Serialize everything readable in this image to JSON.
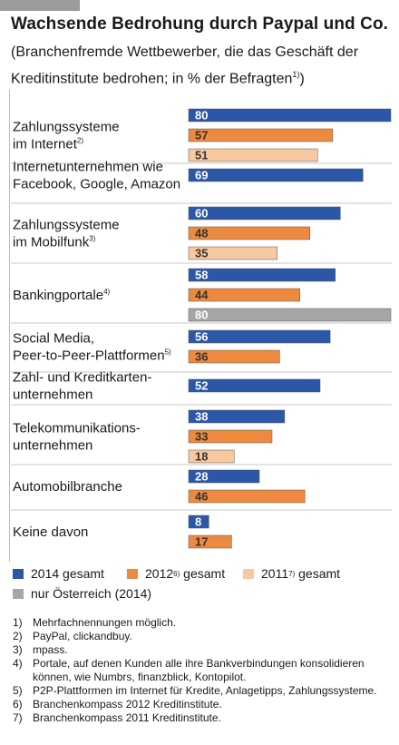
{
  "title": "Wachsende Bedrohung durch Paypal und Co.",
  "subtitle": "(Branchenfremde Wettbewerber, die das Geschäft der Kreditinstitute bedrohen; in % der Befragten",
  "subtitle_sup": "1)",
  "subtitle_close": ")",
  "colors": {
    "2014 gesamt": "#2b57a6",
    "2012 gesamt": "#ee8a40",
    "2011 gesamt": "#f8c8a0",
    "nur Österreich (2014)": "#a6a6a6"
  },
  "chart_data": {
    "type": "bar",
    "orientation": "horizontal",
    "xlim": [
      0,
      80
    ],
    "groups": [
      {
        "label": [
          "Zahlungssysteme",
          "im Internet"
        ],
        "sup": "2)",
        "bars": [
          {
            "series": "2014 gesamt",
            "value": 80
          },
          {
            "series": "2012 gesamt",
            "value": 57
          },
          {
            "series": "2011 gesamt",
            "value": 51
          }
        ]
      },
      {
        "label": [
          "Internetunternehmen wie",
          "Facebook, Google, Amazon"
        ],
        "sup": "",
        "bars": [
          {
            "series": "2014 gesamt",
            "value": 69
          }
        ]
      },
      {
        "label": [
          "Zahlungssysteme",
          "im Mobilfunk"
        ],
        "sup": "3)",
        "bars": [
          {
            "series": "2014 gesamt",
            "value": 60
          },
          {
            "series": "2012 gesamt",
            "value": 48
          },
          {
            "series": "2011 gesamt",
            "value": 35
          }
        ]
      },
      {
        "label": [
          "Bankingportale"
        ],
        "sup": "4)",
        "bars": [
          {
            "series": "2014 gesamt",
            "value": 58
          },
          {
            "series": "2012 gesamt",
            "value": 44
          },
          {
            "series": "nur Österreich (2014)",
            "value": 80
          }
        ]
      },
      {
        "label": [
          "Social Media,",
          "Peer-to-Peer-Plattformen"
        ],
        "sup": "5)",
        "bars": [
          {
            "series": "2014 gesamt",
            "value": 56
          },
          {
            "series": "2012 gesamt",
            "value": 36
          }
        ]
      },
      {
        "label": [
          "Zahl- und Kreditkarten-",
          "unternehmen"
        ],
        "sup": "",
        "bars": [
          {
            "series": "2014 gesamt",
            "value": 52
          }
        ]
      },
      {
        "label": [
          "Telekommunikations-",
          "unternehmen"
        ],
        "sup": "",
        "bars": [
          {
            "series": "2014 gesamt",
            "value": 38
          },
          {
            "series": "2012 gesamt",
            "value": 33
          },
          {
            "series": "2011 gesamt",
            "value": 18
          }
        ]
      },
      {
        "label": [
          "Automobilbranche"
        ],
        "sup": "",
        "bars": [
          {
            "series": "2014 gesamt",
            "value": 28
          },
          {
            "series": "2012 gesamt",
            "value": 46
          }
        ]
      },
      {
        "label": [
          "Keine davon"
        ],
        "sup": "",
        "bars": [
          {
            "series": "2014 gesamt",
            "value": 8
          },
          {
            "series": "2012 gesamt",
            "value": 17
          }
        ]
      }
    ]
  },
  "legend": [
    {
      "text": "2014 gesamt",
      "sup": "",
      "suffix": "",
      "series": "2014 gesamt"
    },
    {
      "text": "2012",
      "sup": "6)",
      "suffix": " gesamt",
      "series": "2012 gesamt"
    },
    {
      "text": "2011",
      "sup": "7)",
      "suffix": " gesamt",
      "series": "2011 gesamt"
    },
    {
      "text": "nur Österreich (2014)",
      "sup": "",
      "suffix": "",
      "series": "nur Österreich (2014)"
    }
  ],
  "footnotes": [
    {
      "num": "1)",
      "text": "Mehrfachnennungen möglich."
    },
    {
      "num": "2)",
      "text": "PayPal, clickandbuy."
    },
    {
      "num": "3)",
      "text": "mpass."
    },
    {
      "num": "4)",
      "text": "Portale, auf denen Kunden alle ihre Bankverbindungen konsolidieren können, wie Numbrs, finanzblick, Kontopilot."
    },
    {
      "num": "5)",
      "text": "P2P-Plattformen im Internet für Kredite, Anlagetipps, Zahlungssysteme."
    },
    {
      "num": "6)",
      "text": "Branchenkompass 2012 Kreditinstitute."
    },
    {
      "num": "7)",
      "text": "Branchenkompass 2011 Kreditinstitute."
    }
  ]
}
